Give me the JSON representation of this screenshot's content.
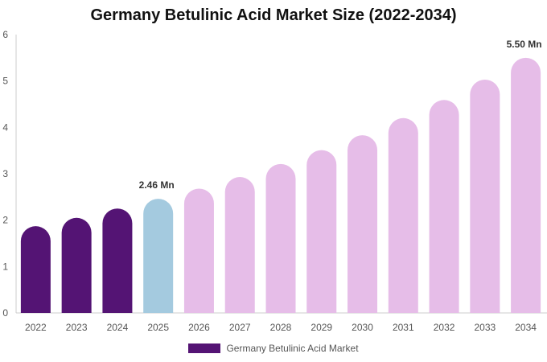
{
  "chart_data": {
    "type": "bar",
    "title": "Germany Betulinic Acid Market Size (2022-2034)",
    "xlabel": "",
    "ylabel": "",
    "categories": [
      "2022",
      "2023",
      "2024",
      "2025",
      "2026",
      "2027",
      "2028",
      "2029",
      "2030",
      "2031",
      "2032",
      "2033",
      "2034"
    ],
    "series": [
      {
        "name": "Germany Betulinic Acid Market",
        "values": [
          1.87,
          2.05,
          2.25,
          2.46,
          2.68,
          2.93,
          3.21,
          3.51,
          3.83,
          4.2,
          4.59,
          5.03,
          5.5
        ]
      }
    ],
    "ylim": [
      0,
      6
    ],
    "yticks": [
      0,
      1,
      2,
      3,
      4,
      5,
      6
    ],
    "grid": false,
    "legend": "bottom",
    "data_labels": [
      {
        "index": 3,
        "text": "2.46 Mn"
      },
      {
        "index": 12,
        "text": "5.50 Mn"
      }
    ],
    "colors": {
      "historical": "#541474",
      "current": "#a4cadf",
      "forecast": "#e6bde8",
      "axis": "#cccccc"
    },
    "bar_groups": [
      "historical",
      "historical",
      "historical",
      "current",
      "forecast",
      "forecast",
      "forecast",
      "forecast",
      "forecast",
      "forecast",
      "forecast",
      "forecast",
      "forecast"
    ]
  }
}
